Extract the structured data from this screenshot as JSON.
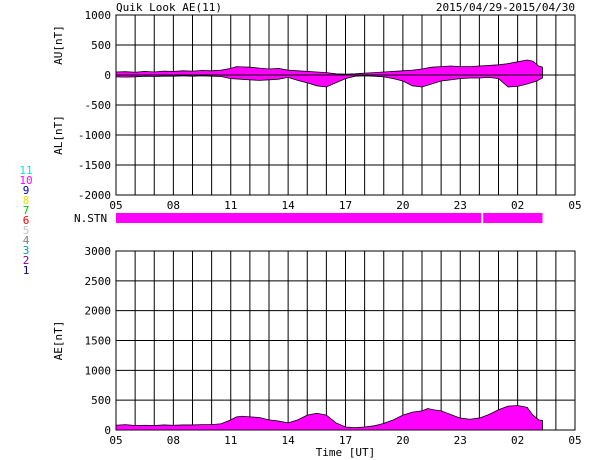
{
  "header": {
    "title": "Quik Look AE(11)",
    "date_range": "2015/04/29-2015/04/30"
  },
  "chart_data": [
    {
      "type": "area",
      "name": "AU/AL panel",
      "ylabel_top": "AU[nT]",
      "ylabel_bottom": "AL[nT]",
      "ylim": [
        -2000,
        1000
      ],
      "yticks": [
        1000,
        500,
        0,
        -500,
        -1000,
        -1500,
        -2000
      ],
      "xlim": [
        5,
        29
      ],
      "xtick_labels": [
        "05",
        "08",
        "11",
        "14",
        "17",
        "20",
        "23",
        "02",
        "05"
      ],
      "series": [
        {
          "name": "AU",
          "x": [
            5,
            5.5,
            6,
            6.5,
            7,
            7.5,
            8,
            8.5,
            9,
            9.5,
            10,
            10.5,
            11,
            11.3,
            11.6,
            12,
            12.5,
            13,
            13.5,
            14,
            14.5,
            15,
            15.5,
            16,
            16.5,
            17,
            17.5,
            18,
            18.5,
            19,
            19.5,
            20,
            20.5,
            21,
            21.5,
            22,
            22.5,
            23,
            23.5,
            24,
            24.5,
            25,
            25.5,
            26,
            26.5,
            26.8,
            27.1,
            27.3
          ],
          "values": [
            50,
            55,
            45,
            60,
            50,
            65,
            60,
            70,
            65,
            75,
            70,
            80,
            110,
            140,
            135,
            130,
            115,
            100,
            110,
            80,
            70,
            60,
            50,
            40,
            20,
            15,
            20,
            30,
            40,
            50,
            60,
            70,
            80,
            100,
            130,
            140,
            150,
            140,
            140,
            150,
            160,
            170,
            190,
            220,
            250,
            230,
            150,
            130
          ]
        },
        {
          "name": "AL",
          "x": [
            5,
            5.5,
            6,
            6.5,
            7,
            7.5,
            8,
            8.5,
            9,
            9.5,
            10,
            10.5,
            11,
            11.5,
            12,
            12.5,
            13,
            13.5,
            14,
            14.5,
            15,
            15.5,
            16,
            16.5,
            17,
            17.5,
            18,
            18.5,
            19,
            19.5,
            20,
            20.5,
            21,
            21.5,
            22,
            22.5,
            23,
            23.5,
            24,
            24.5,
            25,
            25.5,
            26,
            26.5,
            27,
            27.3
          ],
          "values": [
            -30,
            -35,
            -30,
            -20,
            -25,
            -20,
            -20,
            -15,
            -20,
            -15,
            -20,
            -25,
            -60,
            -70,
            -80,
            -90,
            -80,
            -70,
            -40,
            -90,
            -130,
            -180,
            -200,
            -130,
            -60,
            -20,
            -15,
            -20,
            -30,
            -60,
            -100,
            -180,
            -200,
            -150,
            -100,
            -80,
            -60,
            -50,
            -50,
            -40,
            -60,
            -200,
            -190,
            -150,
            -100,
            -50
          ]
        }
      ]
    },
    {
      "type": "table",
      "name": "station count bar",
      "label": "N.STN",
      "legend_levels": [
        "11",
        "10",
        "9",
        "8",
        "7",
        "6",
        "5",
        "4",
        "3",
        "2",
        "1"
      ],
      "legend_colors": [
        "#00e5e5",
        "#ff00ff",
        "#0000c8",
        "#e5e500",
        "#00c800",
        "#ff0000",
        "#c0c0c0",
        "#808080",
        "#00a0a0",
        "#800080",
        "#000080"
      ],
      "segments": [
        {
          "x": [
            5,
            24.1
          ],
          "value": 10,
          "color": "#ff00ff"
        },
        {
          "x": [
            24.2,
            27.3
          ],
          "value": 10,
          "color": "#ff00ff"
        }
      ]
    },
    {
      "type": "area",
      "name": "AE panel",
      "ylabel": "AE[nT]",
      "xlabel": "Time [UT]",
      "ylim": [
        0,
        3000
      ],
      "yticks": [
        3000,
        2500,
        2000,
        1500,
        1000,
        500,
        0
      ],
      "xlim": [
        5,
        29
      ],
      "xtick_labels": [
        "05",
        "08",
        "11",
        "14",
        "17",
        "20",
        "23",
        "02",
        "05"
      ],
      "series": [
        {
          "name": "AE",
          "x": [
            5,
            5.5,
            6,
            6.5,
            7,
            7.5,
            8,
            8.5,
            9,
            9.5,
            10,
            10.5,
            11,
            11.3,
            11.6,
            12,
            12.5,
            13,
            13.5,
            14,
            14.5,
            15,
            15.5,
            16,
            16.5,
            17,
            17.5,
            18,
            18.5,
            19,
            19.5,
            20,
            20.5,
            21,
            21.3,
            21.6,
            22,
            22.5,
            23,
            23.5,
            24,
            24.5,
            25,
            25.5,
            26,
            26.5,
            26.8,
            27.1,
            27.3
          ],
          "values": [
            80,
            90,
            75,
            80,
            75,
            85,
            80,
            85,
            85,
            90,
            90,
            105,
            170,
            220,
            230,
            220,
            210,
            170,
            150,
            120,
            170,
            250,
            280,
            250,
            120,
            50,
            40,
            50,
            70,
            110,
            170,
            250,
            300,
            320,
            360,
            340,
            320,
            260,
            200,
            180,
            200,
            260,
            340,
            400,
            410,
            380,
            250,
            170,
            160
          ]
        }
      ]
    }
  ]
}
